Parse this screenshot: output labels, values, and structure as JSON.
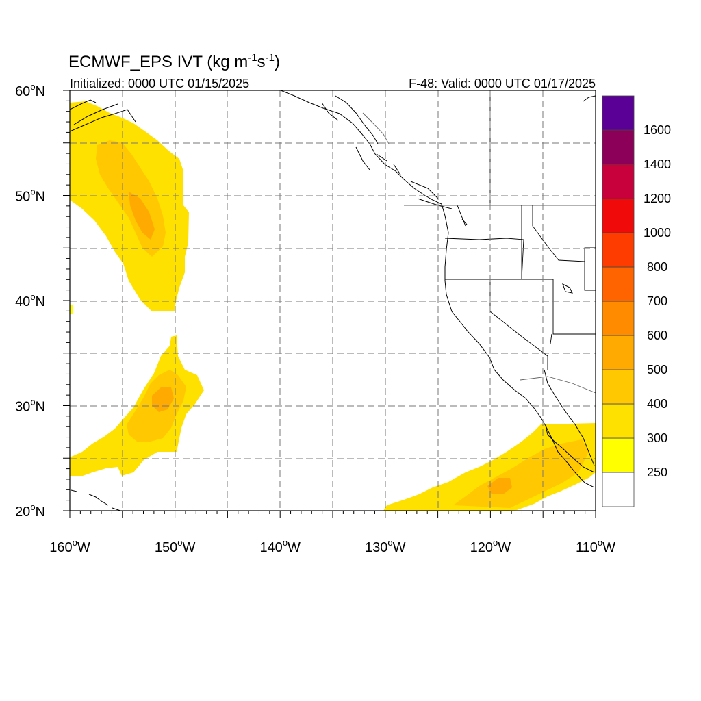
{
  "title": {
    "main": "ECMWF_EPS IVT (kg m",
    "sup1": "-1",
    "mid": "s",
    "sup2": "-1",
    "close": ")"
  },
  "subtitle_left": "Initialized: 0000 UTC 01/15/2025",
  "subtitle_right": "F-48: Valid: 0000 UTC 01/17/2025",
  "y_ticks": [
    {
      "deg": "60",
      "hemi": "N"
    },
    {
      "deg": "50",
      "hemi": "N"
    },
    {
      "deg": "40",
      "hemi": "N"
    },
    {
      "deg": "30",
      "hemi": "N"
    },
    {
      "deg": "20",
      "hemi": "N"
    }
  ],
  "x_ticks": [
    {
      "deg": "160",
      "hemi": "W"
    },
    {
      "deg": "150",
      "hemi": "W"
    },
    {
      "deg": "140",
      "hemi": "W"
    },
    {
      "deg": "130",
      "hemi": "W"
    },
    {
      "deg": "120",
      "hemi": "W"
    },
    {
      "deg": "110",
      "hemi": "W"
    }
  ],
  "colorbar": {
    "labels": [
      "1600",
      "1400",
      "1200",
      "1000",
      "800",
      "700",
      "600",
      "500",
      "400",
      "300",
      "250"
    ],
    "colors": [
      "#ffffff",
      "#ffff00",
      "#ffe100",
      "#ffc800",
      "#ffaa00",
      "#ff8c00",
      "#ff6400",
      "#ff3c00",
      "#f00a0a",
      "#c8003c",
      "#8c005a",
      "#5a0096"
    ]
  },
  "chart_data": {
    "type": "heatmap",
    "title": "ECMWF_EPS IVT (kg m-1s-1)",
    "xlim": [
      -160,
      -110
    ],
    "ylim": [
      20,
      60
    ],
    "grid": true,
    "levels": [
      250,
      300,
      400,
      500,
      600,
      700,
      800,
      1000,
      1200,
      1400,
      1600
    ],
    "legend": "right"
  }
}
